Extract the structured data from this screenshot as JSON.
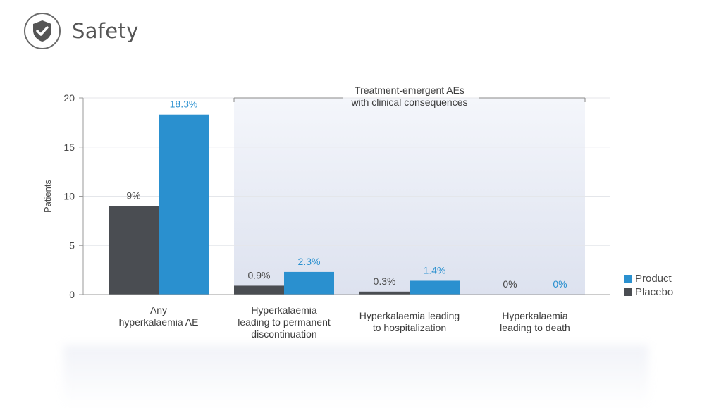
{
  "header": {
    "title": "Safety",
    "icon": "shield-check-icon"
  },
  "chart_data": {
    "type": "bar",
    "ylabel": "Patients",
    "ylim": [
      0,
      20
    ],
    "yticks": [
      0,
      5,
      10,
      15,
      20
    ],
    "categories": [
      [
        "Any",
        "hyperkalaemia AE"
      ],
      [
        "Hyperkalaemia",
        "leading to permanent",
        "discontinuation"
      ],
      [
        "Hyperkalaemia leading",
        "to hospitalization"
      ],
      [
        "Hyperkalaemia",
        "leading to death"
      ]
    ],
    "series": [
      {
        "name": "Placebo",
        "color": "#4a4d52",
        "label_color": "#4a4a4a",
        "values": [
          9,
          0.9,
          0.3,
          0
        ],
        "labels": [
          "9%",
          "0.9%",
          "0.3%",
          "0%"
        ]
      },
      {
        "name": "Product",
        "color": "#2a90cf",
        "label_color": "#2a90cf",
        "values": [
          18.3,
          2.3,
          1.4,
          0
        ],
        "labels": [
          "18.3%",
          "2.3%",
          "1.4%",
          "0%"
        ]
      }
    ],
    "annotation": {
      "lines": [
        "Treatment-emergent AEs",
        "with clinical consequences"
      ],
      "spans_categories": [
        1,
        3
      ]
    },
    "legend_order": [
      "Product",
      "Placebo"
    ],
    "grid": true,
    "legend_position": "right"
  }
}
